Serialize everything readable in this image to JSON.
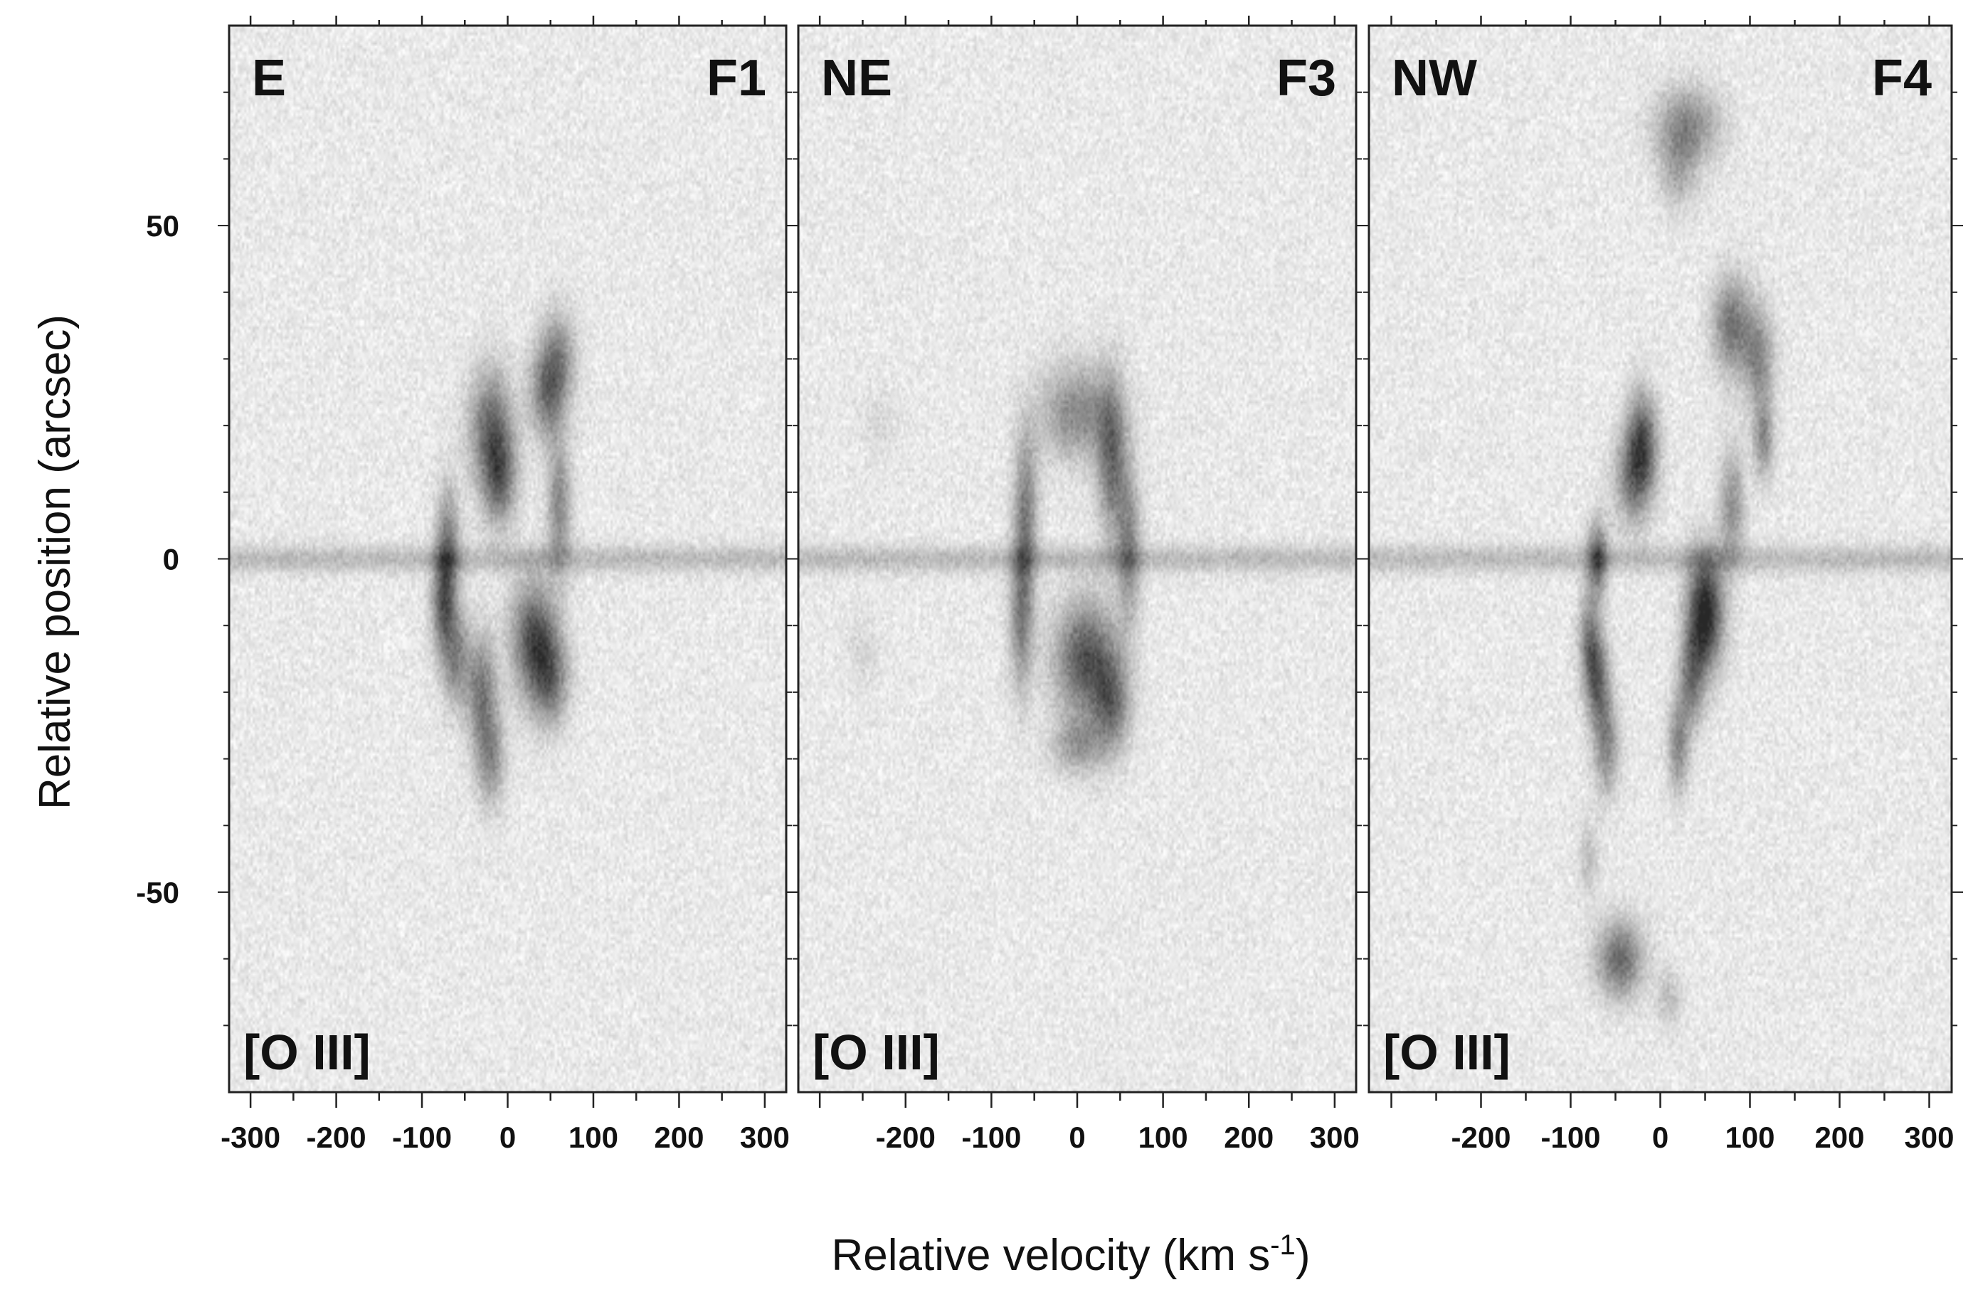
{
  "chart_data": {
    "type": "heatmap",
    "description_kind": "position-velocity diagrams",
    "xlabel": "Relative velocity (km s",
    "xlabel_superscript": "-1",
    "xlabel_suffix": ")",
    "ylabel": "Relative position (arcsec)",
    "xlim": [
      -325,
      325
    ],
    "ylim": [
      -80,
      80
    ],
    "yticks": [
      -50,
      0,
      50
    ],
    "ytick_labels": [
      "-50",
      "0",
      "50"
    ],
    "colormap": "grey-reversed",
    "panels": [
      {
        "direction_label": "E",
        "id_label": "F1",
        "line_label": "[O III]",
        "xticks": [
          -300,
          -200,
          -100,
          0,
          100,
          200,
          300
        ],
        "xtick_labels": [
          "-300",
          "-200",
          "-100",
          "0",
          "100",
          "200",
          "300"
        ],
        "emission_blobs": [
          {
            "v": -20,
            "pos": 20,
            "sv": 18,
            "sp": 6,
            "amp": 0.55
          },
          {
            "v": -10,
            "pos": 12,
            "sv": 14,
            "sp": 5,
            "amp": 0.55
          },
          {
            "v": 45,
            "pos": 25,
            "sv": 14,
            "sp": 5,
            "amp": 0.5
          },
          {
            "v": 60,
            "pos": 30,
            "sv": 14,
            "sp": 5,
            "amp": 0.4
          },
          {
            "v": 60,
            "pos": 8,
            "sv": 10,
            "sp": 7,
            "amp": 0.45
          },
          {
            "v": -70,
            "pos": 2,
            "sv": 10,
            "sp": 6,
            "amp": 0.5
          },
          {
            "v": -75,
            "pos": -7,
            "sv": 10,
            "sp": 5,
            "amp": 0.55
          },
          {
            "v": 30,
            "pos": -12,
            "sv": 18,
            "sp": 6,
            "amp": 0.7
          },
          {
            "v": 50,
            "pos": -18,
            "sv": 15,
            "sp": 5,
            "amp": 0.5
          },
          {
            "v": -60,
            "pos": -15,
            "sv": 12,
            "sp": 5,
            "amp": 0.45
          },
          {
            "v": -30,
            "pos": -20,
            "sv": 12,
            "sp": 6,
            "amp": 0.5
          },
          {
            "v": -20,
            "pos": -30,
            "sv": 12,
            "sp": 5,
            "amp": 0.4
          }
        ]
      },
      {
        "direction_label": "NE",
        "id_label": "F3",
        "line_label": "[O III]",
        "xticks": [
          -200,
          -100,
          0,
          100,
          200,
          300
        ],
        "xtick_labels": [
          "-200",
          "-100",
          "0",
          "100",
          "200",
          "300"
        ],
        "emission_blobs": [
          {
            "v": 0,
            "pos": 22,
            "sv": 30,
            "sp": 5,
            "amp": 0.45
          },
          {
            "v": 40,
            "pos": 15,
            "sv": 12,
            "sp": 8,
            "amp": 0.55
          },
          {
            "v": -60,
            "pos": 8,
            "sv": 10,
            "sp": 8,
            "amp": 0.45
          },
          {
            "v": 60,
            "pos": 2,
            "sv": 10,
            "sp": 8,
            "amp": 0.45
          },
          {
            "v": -65,
            "pos": -8,
            "sv": 10,
            "sp": 8,
            "amp": 0.5
          },
          {
            "v": 10,
            "pos": -15,
            "sv": 25,
            "sp": 6,
            "amp": 0.7
          },
          {
            "v": 40,
            "pos": -22,
            "sv": 15,
            "sp": 5,
            "amp": 0.5
          },
          {
            "v": 0,
            "pos": -28,
            "sv": 20,
            "sp": 3,
            "amp": 0.35
          },
          {
            "v": -250,
            "pos": -14,
            "sv": 12,
            "sp": 4,
            "amp": 0.1
          },
          {
            "v": -230,
            "pos": 20,
            "sv": 14,
            "sp": 4,
            "amp": 0.08
          }
        ]
      },
      {
        "direction_label": "NW",
        "id_label": "F4",
        "line_label": "[O III]",
        "xticks": [
          -200,
          -100,
          0,
          100,
          200,
          300
        ],
        "xtick_labels": [
          "-200",
          "-100",
          "0",
          "100",
          "200",
          "300"
        ],
        "emission_blobs": [
          {
            "v": 30,
            "pos": 65,
            "sv": 25,
            "sp": 4,
            "amp": 0.45
          },
          {
            "v": 20,
            "pos": 58,
            "sv": 15,
            "sp": 4,
            "amp": 0.25
          },
          {
            "v": 80,
            "pos": 35,
            "sv": 15,
            "sp": 5,
            "amp": 0.55
          },
          {
            "v": 110,
            "pos": 30,
            "sv": 12,
            "sp": 5,
            "amp": 0.45
          },
          {
            "v": 115,
            "pos": 18,
            "sv": 8,
            "sp": 4,
            "amp": 0.45
          },
          {
            "v": -20,
            "pos": 18,
            "sv": 12,
            "sp": 5,
            "amp": 0.6
          },
          {
            "v": -30,
            "pos": 12,
            "sv": 15,
            "sp": 5,
            "amp": 0.5
          },
          {
            "v": 80,
            "pos": 8,
            "sv": 10,
            "sp": 6,
            "amp": 0.4
          },
          {
            "v": -70,
            "pos": 0,
            "sv": 8,
            "sp": 4,
            "amp": 0.6
          },
          {
            "v": 50,
            "pos": -8,
            "sv": 14,
            "sp": 6,
            "amp": 0.95
          },
          {
            "v": 35,
            "pos": -18,
            "sv": 10,
            "sp": 5,
            "amp": 0.5
          },
          {
            "v": -80,
            "pos": -12,
            "sv": 8,
            "sp": 5,
            "amp": 0.45
          },
          {
            "v": -70,
            "pos": -18,
            "sv": 9,
            "sp": 5,
            "amp": 0.6
          },
          {
            "v": -60,
            "pos": -28,
            "sv": 10,
            "sp": 5,
            "amp": 0.45
          },
          {
            "v": 20,
            "pos": -28,
            "sv": 8,
            "sp": 5,
            "amp": 0.45
          },
          {
            "v": -80,
            "pos": -45,
            "sv": 8,
            "sp": 4,
            "amp": 0.2
          },
          {
            "v": -45,
            "pos": -60,
            "sv": 18,
            "sp": 4,
            "amp": 0.6
          },
          {
            "v": 10,
            "pos": -66,
            "sv": 10,
            "sp": 3,
            "amp": 0.2
          }
        ]
      }
    ],
    "continuum": {
      "pos": 0,
      "width": 1.4,
      "amp": 0.22
    }
  }
}
